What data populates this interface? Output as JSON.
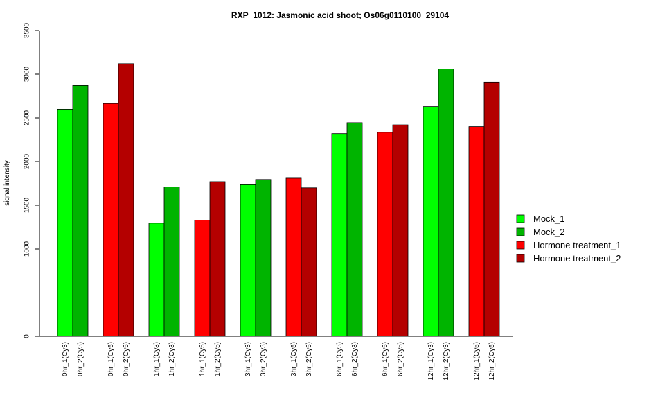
{
  "chart_data": {
    "type": "bar",
    "title": "RXP_1012: Jasmonic acid shoot; Os06g0110100_29104",
    "ylabel": "signal intensity",
    "xlabel": "",
    "ylim": [
      0,
      3500
    ],
    "yticks": [
      "0",
      "1000",
      "1500",
      "2000",
      "2500",
      "3000",
      "3500"
    ],
    "legend_position": "right",
    "grid": false,
    "bars": [
      {
        "label": "0hr_1(Cy3)",
        "value": 2600,
        "series": 0
      },
      {
        "label": "0hr_2(Cy3)",
        "value": 2870,
        "series": 1
      },
      {
        "label": "0hr_1(Cy5)",
        "value": 2665,
        "series": 2
      },
      {
        "label": "0hr_2(Cy5)",
        "value": 3120,
        "series": 3
      },
      {
        "label": "1hr_1(Cy3)",
        "value": 1295,
        "series": 0
      },
      {
        "label": "1hr_2(Cy3)",
        "value": 1710,
        "series": 1
      },
      {
        "label": "1hr_1(Cy5)",
        "value": 1330,
        "series": 2
      },
      {
        "label": "1hr_2(Cy5)",
        "value": 1770,
        "series": 3
      },
      {
        "label": "3hr_1(Cy3)",
        "value": 1735,
        "series": 0
      },
      {
        "label": "3hr_2(Cy3)",
        "value": 1795,
        "series": 1
      },
      {
        "label": "3hr_1(Cy5)",
        "value": 1810,
        "series": 2
      },
      {
        "label": "3hr_2(Cy5)",
        "value": 1700,
        "series": 3
      },
      {
        "label": "6hr_1(Cy3)",
        "value": 2320,
        "series": 0
      },
      {
        "label": "6hr_2(Cy3)",
        "value": 2445,
        "series": 1
      },
      {
        "label": "6hr_1(Cy5)",
        "value": 2335,
        "series": 2
      },
      {
        "label": "6hr_2(Cy5)",
        "value": 2420,
        "series": 3
      },
      {
        "label": "12hr_1(Cy3)",
        "value": 2630,
        "series": 0
      },
      {
        "label": "12hr_2(Cy3)",
        "value": 3060,
        "series": 1
      },
      {
        "label": "12hr_1(Cy5)",
        "value": 2400,
        "series": 2
      },
      {
        "label": "12hr_2(Cy5)",
        "value": 2910,
        "series": 3
      }
    ],
    "series": [
      {
        "name": "Mock_1",
        "color": "#00ff00"
      },
      {
        "name": "Mock_2",
        "color": "#00b400"
      },
      {
        "name": "Hormone treatment_1",
        "color": "#ff0000"
      },
      {
        "name": "Hormone treatment_2",
        "color": "#b40000"
      }
    ]
  }
}
